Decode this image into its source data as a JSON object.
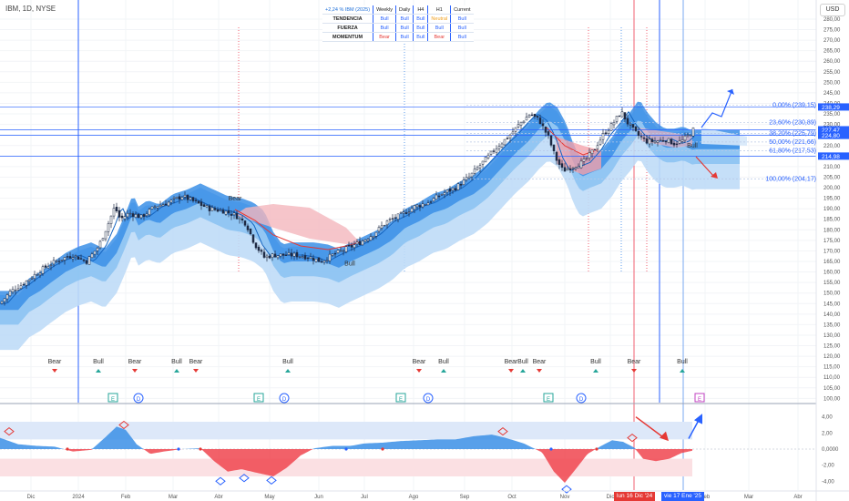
{
  "header": {
    "symbol": "IBM, 1D, NYSE",
    "currency": "USD"
  },
  "table": {
    "headers": [
      "+2,24 % IBM (2025)",
      "Weekly",
      "Daily",
      "H4",
      "H1",
      "Current"
    ],
    "rows": [
      {
        "name": "TENDENCIA",
        "cells": [
          "Bull",
          "Bull",
          "Bull",
          "Neutral",
          "Bull"
        ]
      },
      {
        "name": "FUERZA",
        "cells": [
          "Bull",
          "Bull",
          "Bull",
          "Bull",
          "Bull"
        ]
      },
      {
        "name": "MOMENTUM",
        "cells": [
          "Bear",
          "Bull",
          "Bull",
          "Bear",
          "Bull"
        ]
      }
    ]
  },
  "chart_data": [
    {
      "type": "candlestick",
      "title": "IBM, 1D, NYSE",
      "x_axis_labels": [
        "Dic",
        "2024",
        "Feb",
        "Mar",
        "Abr",
        "May",
        "Jun",
        "Jul",
        "Ago",
        "Sep",
        "Oct",
        "Nov",
        "Dic",
        "Feb",
        "Mar",
        "Abr"
      ],
      "y_ticks": [
        100,
        105,
        110,
        115,
        120,
        125,
        130,
        135,
        140,
        145,
        150,
        155,
        160,
        165,
        170,
        175,
        180,
        185,
        190,
        195,
        200,
        205,
        210,
        215,
        220,
        225,
        230,
        235,
        240,
        245,
        250,
        255,
        260,
        265,
        270,
        275,
        280
      ],
      "ylim": [
        98,
        283
      ],
      "price_tags": [
        {
          "value": 238.29,
          "label": "238,29",
          "color": "#2962ff"
        },
        {
          "value": 227.47,
          "label": "227,47",
          "color": "#2962ff"
        },
        {
          "value": 224.8,
          "label": "224,80",
          "color": "#2962ff"
        },
        {
          "value": 214.98,
          "label": "214,98",
          "color": "#2962ff"
        }
      ],
      "fibonacci": [
        {
          "label": "0,00% (239,15)",
          "value": 239.15
        },
        {
          "label": "23,60% (230,89)",
          "value": 230.89
        },
        {
          "label": "38,20% (225,79)",
          "value": 225.79
        },
        {
          "label": "50,00% (221,66)",
          "value": 221.66
        },
        {
          "label": "61,80% (217,53)",
          "value": 217.53
        },
        {
          "label": "100,00% (204,17)",
          "value": 204.17
        }
      ],
      "price_anchors": [
        [
          0,
          145
        ],
        [
          12,
          151
        ],
        [
          24,
          154
        ],
        [
          36,
          158
        ],
        [
          52,
          163
        ],
        [
          66,
          166
        ],
        [
          80,
          168
        ],
        [
          95,
          165
        ],
        [
          108,
          172
        ],
        [
          118,
          182
        ],
        [
          126,
          191
        ],
        [
          132,
          185
        ],
        [
          142,
          188
        ],
        [
          155,
          186
        ],
        [
          170,
          191
        ],
        [
          185,
          193
        ],
        [
          200,
          196
        ],
        [
          215,
          193
        ],
        [
          230,
          190
        ],
        [
          245,
          189
        ],
        [
          258,
          187
        ],
        [
          270,
          183
        ],
        [
          280,
          173
        ],
        [
          290,
          167
        ],
        [
          300,
          168
        ],
        [
          312,
          168
        ],
        [
          325,
          168
        ],
        [
          340,
          167
        ],
        [
          352,
          165
        ],
        [
          365,
          168
        ],
        [
          380,
          171
        ],
        [
          395,
          174
        ],
        [
          410,
          178
        ],
        [
          425,
          184
        ],
        [
          440,
          187
        ],
        [
          455,
          191
        ],
        [
          470,
          193
        ],
        [
          485,
          197
        ],
        [
          500,
          200
        ],
        [
          515,
          205
        ],
        [
          530,
          212
        ],
        [
          545,
          219
        ],
        [
          560,
          225
        ],
        [
          572,
          231
        ],
        [
          582,
          235
        ],
        [
          592,
          232
        ],
        [
          602,
          224
        ],
        [
          610,
          214
        ],
        [
          618,
          208
        ],
        [
          628,
          210
        ],
        [
          640,
          212
        ],
        [
          652,
          218
        ],
        [
          662,
          225
        ],
        [
          672,
          230
        ],
        [
          682,
          236
        ],
        [
          690,
          230
        ],
        [
          700,
          225
        ],
        [
          710,
          222
        ],
        [
          720,
          222
        ],
        [
          730,
          223
        ],
        [
          740,
          221
        ],
        [
          748,
          222
        ],
        [
          756,
          225
        ],
        [
          762,
          228
        ]
      ],
      "signals": [
        {
          "label": "Bear",
          "x_index": 60
        },
        {
          "label": "Bull",
          "x_index": 108
        },
        {
          "label": "Bear",
          "x_index": 148
        },
        {
          "label": "Bull",
          "x_index": 194
        },
        {
          "label": "Bear",
          "x_index": 215
        },
        {
          "label": "Bull",
          "x_index": 316
        },
        {
          "label": "Bear",
          "x_index": 460
        },
        {
          "label": "Bull",
          "x_index": 487
        },
        {
          "label": "Bear",
          "x_index": 561
        },
        {
          "label": "Bull",
          "x_index": 574
        },
        {
          "label": "Bear",
          "x_index": 592
        },
        {
          "label": "Bull",
          "x_index": 654
        },
        {
          "label": "Bear",
          "x_index": 696
        },
        {
          "label": "Bull",
          "x_index": 749
        }
      ],
      "chart_labels": [
        {
          "label": "Bear",
          "x_index": 258,
          "value": 194
        },
        {
          "label": "Bull",
          "x_index": 384,
          "value": 163
        },
        {
          "label": "Bull",
          "x_index": 760,
          "value": 219
        }
      ],
      "event_markers": [
        "E",
        "D",
        "E",
        "D",
        "E",
        "D",
        "E",
        "D",
        "E"
      ]
    },
    {
      "type": "area",
      "title": "",
      "y_ticks_labels": [
        "4,00",
        "2,00",
        "0,0000",
        "-2,00",
        "-4,00"
      ],
      "y_ticks": [
        4,
        2,
        0,
        -2,
        -4
      ],
      "ylim": [
        -5.1,
        5.1
      ],
      "anchors": [
        [
          0,
          1.4
        ],
        [
          20,
          0.6
        ],
        [
          40,
          0.4
        ],
        [
          60,
          0.3
        ],
        [
          80,
          -0.3
        ],
        [
          100,
          -0.1
        ],
        [
          115,
          1.4
        ],
        [
          128,
          2.8
        ],
        [
          138,
          2.4
        ],
        [
          150,
          0.6
        ],
        [
          165,
          -0.6
        ],
        [
          180,
          -0.3
        ],
        [
          200,
          0.0
        ],
        [
          220,
          0.1
        ],
        [
          235,
          -1.5
        ],
        [
          250,
          -2.8
        ],
        [
          265,
          -2.5
        ],
        [
          280,
          -2.9
        ],
        [
          300,
          -3.4
        ],
        [
          315,
          -2.3
        ],
        [
          330,
          -0.8
        ],
        [
          345,
          0.1
        ],
        [
          365,
          0.4
        ],
        [
          385,
          0.4
        ],
        [
          400,
          0.7
        ],
        [
          420,
          0.8
        ],
        [
          440,
          1.0
        ],
        [
          460,
          1.1
        ],
        [
          480,
          1.2
        ],
        [
          500,
          1.2
        ],
        [
          520,
          1.6
        ],
        [
          540,
          1.8
        ],
        [
          555,
          1.4
        ],
        [
          575,
          0.7
        ],
        [
          595,
          -0.4
        ],
        [
          608,
          -2.8
        ],
        [
          620,
          -4.2
        ],
        [
          632,
          -2.5
        ],
        [
          645,
          -0.6
        ],
        [
          660,
          0.4
        ],
        [
          672,
          1.1
        ],
        [
          684,
          0.9
        ],
        [
          696,
          0.2
        ],
        [
          706,
          -1.2
        ],
        [
          720,
          -1.5
        ],
        [
          735,
          -1.2
        ],
        [
          748,
          -0.5
        ],
        [
          760,
          -0.2
        ]
      ],
      "marks": [
        {
          "shape": "diamond",
          "x_index": 10,
          "value": 2.2,
          "color": "#e53935"
        },
        {
          "shape": "diamond",
          "x_index": 136,
          "value": 3.0,
          "color": "#e53935"
        },
        {
          "shape": "diamond",
          "x_index": 242,
          "value": -4.0,
          "color": "#2962ff"
        },
        {
          "shape": "diamond",
          "x_index": 268,
          "value": -3.6,
          "color": "#2962ff"
        },
        {
          "shape": "diamond",
          "x_index": 298,
          "value": -3.9,
          "color": "#2962ff"
        },
        {
          "shape": "diamond",
          "x_index": 552,
          "value": 2.2,
          "color": "#e53935"
        },
        {
          "shape": "diamond",
          "x_index": 622,
          "value": -5.0,
          "color": "#2962ff"
        },
        {
          "shape": "diamond",
          "x_index": 694,
          "value": 1.4,
          "color": "#e53935"
        }
      ]
    }
  ],
  "footer": {
    "date_tag_1": "lun 16 Dic '24",
    "date_tag_2": "vie 17 Ene '25"
  }
}
